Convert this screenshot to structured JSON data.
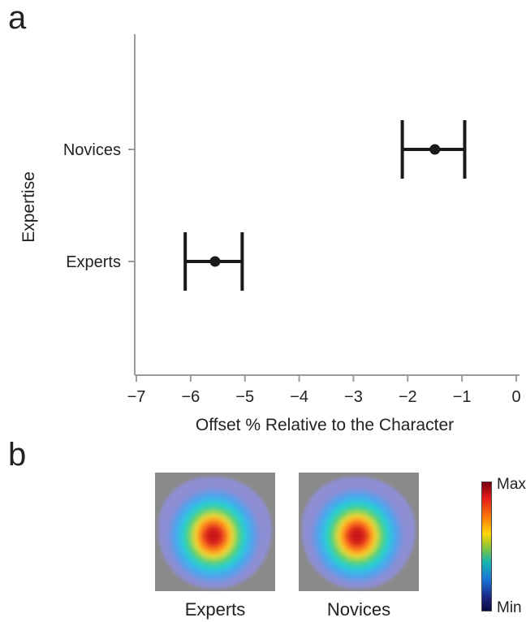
{
  "panels": {
    "a_label": "a",
    "b_label": "b"
  },
  "chart_data": {
    "type": "scatter",
    "subtype": "point-with-error-bars",
    "xlabel": "Offset % Relative to the Character",
    "ylabel": "Expertise",
    "xlim": [
      -7,
      0
    ],
    "xticks": [
      -7,
      -6,
      -5,
      -4,
      -3,
      -2,
      -1,
      0
    ],
    "xtick_labels": [
      "−7",
      "−6",
      "−5",
      "−4",
      "−3",
      "−2",
      "−1",
      "0"
    ],
    "categories": [
      "Novices",
      "Experts"
    ],
    "points": [
      {
        "category": "Novices",
        "x": -1.5,
        "err_low": -2.1,
        "err_high": -0.95
      },
      {
        "category": "Experts",
        "x": -5.55,
        "err_low": -6.1,
        "err_high": -5.05
      }
    ],
    "grid": false,
    "colors": {
      "marks": "#1a1a1a",
      "axis": "#9a9a9a"
    }
  },
  "heatmaps": {
    "items": [
      {
        "label": "Experts"
      },
      {
        "label": "Novices"
      }
    ],
    "colorbar": {
      "max_label": "Max",
      "min_label": "Min"
    }
  }
}
